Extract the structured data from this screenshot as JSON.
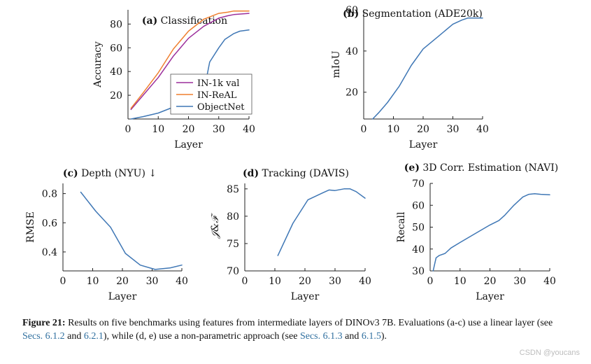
{
  "chart_data": [
    {
      "type": "line",
      "panel_label": "(a)",
      "title": "Classification",
      "xlabel": "Layer",
      "ylabel": "Accuracy",
      "xlim": [
        0,
        40
      ],
      "ylim": [
        0,
        92
      ],
      "xticks": [
        0,
        10,
        20,
        30,
        40
      ],
      "yticks": [
        20,
        40,
        60,
        80
      ],
      "legend": "inside-lower-right",
      "series": [
        {
          "name": "IN-1k val",
          "color": "#9b2f9b",
          "x": [
            1,
            5,
            10,
            15,
            20,
            25,
            30,
            33,
            35,
            40
          ],
          "y": [
            8,
            20,
            35,
            53,
            68,
            78,
            85,
            87,
            88,
            89
          ]
        },
        {
          "name": "IN-ReAL",
          "color": "#ef7f2f",
          "x": [
            1,
            5,
            10,
            15,
            20,
            25,
            30,
            33,
            35,
            40
          ],
          "y": [
            9,
            22,
            39,
            59,
            74,
            84,
            89,
            90,
            91,
            91
          ]
        },
        {
          "name": "ObjectNet",
          "color": "#3f77b5",
          "x": [
            1,
            5,
            10,
            15,
            20,
            25,
            27,
            30,
            32,
            35,
            37,
            40
          ],
          "y": [
            0,
            2,
            5,
            10,
            16,
            22,
            48,
            60,
            67,
            72,
            74,
            75
          ]
        }
      ]
    },
    {
      "type": "line",
      "panel_label": "(b)",
      "title": "Segmentation (ADE20k)",
      "xlabel": "Layer",
      "ylabel": "mIoU",
      "xlim": [
        0,
        40
      ],
      "ylim": [
        7,
        60
      ],
      "xticks": [
        0,
        10,
        20,
        30,
        40
      ],
      "yticks": [
        20,
        40,
        60
      ],
      "series": [
        {
          "color": "#3f77b5",
          "x": [
            3,
            5,
            8,
            12,
            16,
            20,
            25,
            30,
            33,
            35,
            37,
            40
          ],
          "y": [
            7,
            10,
            15,
            23,
            33,
            41,
            47,
            53,
            55,
            56,
            56,
            56
          ]
        }
      ]
    },
    {
      "type": "line",
      "panel_label": "(c)",
      "title": "Depth (NYU) ↓",
      "xlabel": "Layer",
      "ylabel": "RMSE",
      "xlim": [
        0,
        40
      ],
      "ylim": [
        0.27,
        0.87
      ],
      "xticks": [
        0,
        10,
        20,
        30,
        40
      ],
      "yticks": [
        0.4,
        0.6,
        0.8
      ],
      "series": [
        {
          "color": "#3f77b5",
          "x": [
            6,
            11,
            16,
            21,
            26,
            31,
            36,
            40
          ],
          "y": [
            0.81,
            0.68,
            0.57,
            0.39,
            0.31,
            0.28,
            0.29,
            0.31
          ]
        }
      ]
    },
    {
      "type": "line",
      "panel_label": "(d)",
      "title": "Tracking (DAVIS)",
      "xlabel": "Layer",
      "ylabel": "𝒥&ℱ",
      "xlim": [
        0,
        40
      ],
      "ylim": [
        70,
        86
      ],
      "xticks": [
        0,
        10,
        20,
        30,
        40
      ],
      "yticks": [
        70,
        75,
        80,
        85
      ],
      "series": [
        {
          "color": "#3f77b5",
          "x": [
            11,
            16,
            21,
            26,
            28,
            30,
            33,
            35,
            37,
            40
          ],
          "y": [
            72.8,
            78.7,
            83,
            84.3,
            84.8,
            84.7,
            85,
            85,
            84.5,
            83.3
          ]
        }
      ]
    },
    {
      "type": "line",
      "panel_label": "(e)",
      "title": "3D Corr. Estimation (NAVI)",
      "xlabel": "Layer",
      "ylabel": "Recall",
      "xlim": [
        0,
        40
      ],
      "ylim": [
        30,
        70
      ],
      "xticks": [
        0,
        10,
        20,
        30,
        40
      ],
      "yticks": [
        30,
        40,
        50,
        60,
        70
      ],
      "series": [
        {
          "color": "#3f77b5",
          "x": [
            1,
            1.5,
            2,
            3,
            5,
            7,
            10,
            15,
            20,
            23,
            25,
            28,
            31,
            33,
            35,
            37,
            40
          ],
          "y": [
            30,
            33,
            36,
            37,
            38,
            40.5,
            43,
            47,
            51,
            53,
            55.5,
            60,
            63.8,
            65,
            65.3,
            65,
            64.8
          ]
        }
      ]
    }
  ],
  "caption": {
    "lead": "Figure 21:",
    "text_1": " Results on five benchmarks using features from intermediate layers of DINOv3 7B. Evaluations (a-c) use a linear layer (see ",
    "ref_1": "Secs. 6.1.2",
    "text_2": " and ",
    "ref_2": "6.2.1",
    "text_3": "), while (d, e) use a non-parametric approach (see ",
    "ref_3": "Secs. 6.1.3",
    "text_4": " and ",
    "ref_4": "6.1.5",
    "text_5": ")."
  },
  "watermark": "CSDN @youcans"
}
